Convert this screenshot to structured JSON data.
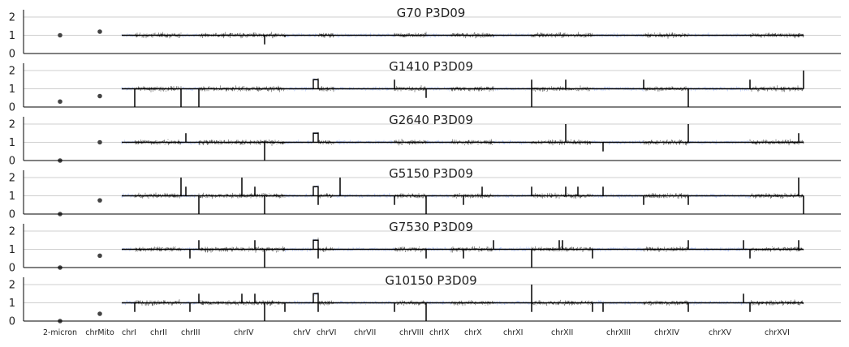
{
  "chart_data": {
    "type": "line",
    "y_ticks": [
      "0",
      "1",
      "2"
    ],
    "ylim": [
      0,
      2.4
    ],
    "grid": "horizontal",
    "colors": {
      "even_chrom": "#4c4c4c",
      "odd_chrom": "#9fb8ff",
      "segment": "#000000",
      "point": "#444444"
    },
    "point_labels": [
      "2-micron",
      "chrMito"
    ],
    "chromosomes": [
      {
        "name": "chrI",
        "start": 150,
        "end": 166
      },
      {
        "name": "chrII",
        "start": 166,
        "end": 223
      },
      {
        "name": "chrIII",
        "start": 223,
        "end": 245
      },
      {
        "name": "chrIV",
        "start": 245,
        "end": 351
      },
      {
        "name": "chrV",
        "start": 351,
        "end": 392
      },
      {
        "name": "chrVI",
        "start": 392,
        "end": 411
      },
      {
        "name": "chrVII",
        "start": 411,
        "end": 486
      },
      {
        "name": "chrVIII",
        "start": 486,
        "end": 525
      },
      {
        "name": "chrIX",
        "start": 525,
        "end": 556
      },
      {
        "name": "chrX",
        "start": 556,
        "end": 608
      },
      {
        "name": "chrXI",
        "start": 608,
        "end": 655
      },
      {
        "name": "chrXII",
        "start": 655,
        "end": 730
      },
      {
        "name": "chrXIII",
        "start": 730,
        "end": 793
      },
      {
        "name": "chrXIV",
        "start": 793,
        "end": 848
      },
      {
        "name": "chrXV",
        "start": 848,
        "end": 924
      },
      {
        "name": "chrXVI",
        "start": 924,
        "end": 990
      }
    ],
    "panels": [
      {
        "title": "G70 P3D09",
        "points": [
          1.0,
          1.2
        ],
        "events": [
          {
            "x": 326,
            "dy": -0.5
          },
          {
            "x": 351,
            "dy": -0.1
          }
        ],
        "amps": []
      },
      {
        "title": "G1410 P3D09",
        "points": [
          0.3,
          0.6
        ],
        "events": [
          {
            "x": 166,
            "dy": -1.0
          },
          {
            "x": 223,
            "dy": -1.0
          },
          {
            "x": 245,
            "dy": -1.0
          },
          {
            "x": 486,
            "dy": 0.5
          },
          {
            "x": 525,
            "dy": -0.5
          },
          {
            "x": 655,
            "dy": 0.5
          },
          {
            "x": 655,
            "dy": -1.0
          },
          {
            "x": 697,
            "dy": 0.5
          },
          {
            "x": 793,
            "dy": 0.5
          },
          {
            "x": 848,
            "dy": -1.0
          },
          {
            "x": 924,
            "dy": 0.5
          },
          {
            "x": 990,
            "dy": 1.0
          }
        ],
        "amps": [
          {
            "x0": 386,
            "x1": 392,
            "v": 1.5
          }
        ]
      },
      {
        "title": "G2640 P3D09",
        "points": [
          0.0,
          1.0
        ],
        "events": [
          {
            "x": 229,
            "dy": 0.5
          },
          {
            "x": 326,
            "dy": -1.0
          },
          {
            "x": 697,
            "dy": 1.0
          },
          {
            "x": 743,
            "dy": -0.5
          },
          {
            "x": 848,
            "dy": 1.0
          },
          {
            "x": 984,
            "dy": 0.5
          }
        ],
        "amps": [
          {
            "x0": 386,
            "x1": 392,
            "v": 1.5
          }
        ]
      },
      {
        "title": "G5150 P3D09",
        "points": [
          0.0,
          0.75
        ],
        "events": [
          {
            "x": 223,
            "dy": 1.0
          },
          {
            "x": 229,
            "dy": 0.5
          },
          {
            "x": 245,
            "dy": -1.0
          },
          {
            "x": 298,
            "dy": 1.0
          },
          {
            "x": 314,
            "dy": 0.5
          },
          {
            "x": 326,
            "dy": -1.0
          },
          {
            "x": 392,
            "dy": -0.5
          },
          {
            "x": 419,
            "dy": 1.0
          },
          {
            "x": 486,
            "dy": -0.5
          },
          {
            "x": 525,
            "dy": -1.0
          },
          {
            "x": 571,
            "dy": -0.5
          },
          {
            "x": 594,
            "dy": 0.5
          },
          {
            "x": 655,
            "dy": 0.5
          },
          {
            "x": 697,
            "dy": 0.5
          },
          {
            "x": 712,
            "dy": 0.5
          },
          {
            "x": 743,
            "dy": 0.5
          },
          {
            "x": 793,
            "dy": -0.5
          },
          {
            "x": 848,
            "dy": -0.5
          },
          {
            "x": 984,
            "dy": 1.0
          },
          {
            "x": 990,
            "dy": -1.0
          }
        ],
        "amps": [
          {
            "x0": 386,
            "x1": 392,
            "v": 1.5
          }
        ]
      },
      {
        "title": "G7530 P3D09",
        "points": [
          0.0,
          0.65
        ],
        "events": [
          {
            "x": 234,
            "dy": -0.5
          },
          {
            "x": 245,
            "dy": 0.5
          },
          {
            "x": 314,
            "dy": 0.5
          },
          {
            "x": 326,
            "dy": -1.0
          },
          {
            "x": 392,
            "dy": -0.5
          },
          {
            "x": 525,
            "dy": -0.5
          },
          {
            "x": 571,
            "dy": -0.5
          },
          {
            "x": 608,
            "dy": 0.5
          },
          {
            "x": 655,
            "dy": -1.0
          },
          {
            "x": 689,
            "dy": 0.5
          },
          {
            "x": 693,
            "dy": 0.5
          },
          {
            "x": 730,
            "dy": -0.5
          },
          {
            "x": 848,
            "dy": 0.5
          },
          {
            "x": 916,
            "dy": 0.5
          },
          {
            "x": 924,
            "dy": -0.5
          },
          {
            "x": 984,
            "dy": 0.5
          }
        ],
        "amps": [
          {
            "x0": 386,
            "x1": 392,
            "v": 1.5
          }
        ]
      },
      {
        "title": "G10150 P3D09",
        "points": [
          0.0,
          0.4
        ],
        "events": [
          {
            "x": 166,
            "dy": -0.5
          },
          {
            "x": 234,
            "dy": -0.5
          },
          {
            "x": 245,
            "dy": 0.5
          },
          {
            "x": 298,
            "dy": 0.5
          },
          {
            "x": 314,
            "dy": 0.5
          },
          {
            "x": 326,
            "dy": -1.0
          },
          {
            "x": 351,
            "dy": -0.5
          },
          {
            "x": 392,
            "dy": -0.5
          },
          {
            "x": 486,
            "dy": -0.5
          },
          {
            "x": 525,
            "dy": -1.0
          },
          {
            "x": 655,
            "dy": 1.0
          },
          {
            "x": 655,
            "dy": -0.5
          },
          {
            "x": 730,
            "dy": -0.5
          },
          {
            "x": 743,
            "dy": -0.5
          },
          {
            "x": 848,
            "dy": -0.5
          },
          {
            "x": 916,
            "dy": 0.5
          },
          {
            "x": 924,
            "dy": -0.5
          }
        ],
        "amps": [
          {
            "x0": 386,
            "x1": 392,
            "v": 1.5
          }
        ]
      }
    ]
  }
}
